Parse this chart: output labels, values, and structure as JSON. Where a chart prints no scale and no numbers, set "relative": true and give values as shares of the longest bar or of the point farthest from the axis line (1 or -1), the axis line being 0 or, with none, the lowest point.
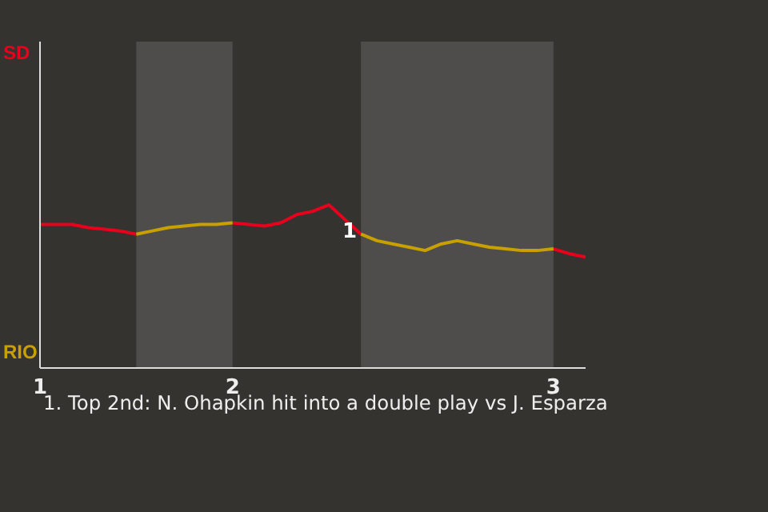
{
  "chart_data": {
    "type": "line",
    "relative": true,
    "categories": [
      "1",
      null,
      null,
      null,
      null,
      null,
      null,
      null,
      null,
      null,
      null,
      null,
      "2",
      null,
      null,
      null,
      null,
      null,
      null,
      null,
      null,
      null,
      null,
      null,
      null,
      null,
      null,
      null,
      null,
      null,
      null,
      null,
      "3",
      null,
      null
    ],
    "series": [
      {
        "color": "#e8001c",
        "values": [
          0.88,
          0.88,
          0.88,
          0.86,
          0.85,
          0.84,
          0.82,
          null,
          null,
          null,
          null,
          null,
          0.89,
          0.88,
          0.87,
          0.89,
          0.94,
          0.96,
          1,
          0.91,
          0.82,
          null,
          null,
          null,
          null,
          null,
          null,
          null,
          null,
          null,
          null,
          null,
          0.73,
          0.7,
          0.68
        ]
      },
      {
        "color": "#c8a000",
        "values": [
          null,
          null,
          null,
          null,
          null,
          null,
          0.82,
          0.84,
          0.86,
          0.87,
          0.88,
          0.88,
          0.89,
          null,
          null,
          null,
          null,
          null,
          null,
          null,
          0.82,
          0.78,
          0.76,
          0.74,
          0.72,
          0.76,
          0.78,
          0.76,
          0.74,
          0.73,
          0.72,
          0.72,
          0.73,
          null,
          null
        ]
      }
    ],
    "annotations": [
      "SD",
      "RIO",
      {
        "text": "1",
        "y": 0.91
      },
      "1. Top 2nd: N. Ohapkin hit into a double play vs J. Esparza"
    ],
    "marker": "none",
    "line_style": "solid"
  }
}
